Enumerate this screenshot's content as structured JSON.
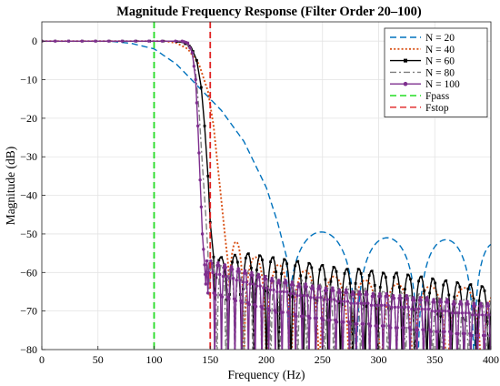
{
  "chart_data": {
    "type": "line",
    "title": "Magnitude Frequency Response (Filter Order 20–100)",
    "xlabel": "Frequency (Hz)",
    "ylabel": "Magnitude (dB)",
    "xlim": [
      0,
      400
    ],
    "ylim": [
      -80,
      5
    ],
    "xticks": [
      0,
      50,
      100,
      150,
      200,
      250,
      300,
      350,
      400
    ],
    "yticks": [
      0,
      -10,
      -20,
      -30,
      -40,
      -50,
      -60,
      -70,
      -80
    ],
    "grid": true,
    "legend_position": "top-right",
    "series": [
      {
        "name": "N = 20",
        "color": "#0072BD",
        "style": "dashed",
        "marker": "none",
        "profile": {
          "passband": [
            [
              0,
              0
            ],
            [
              60,
              0
            ],
            [
              80,
              -0.6
            ],
            [
              100,
              -2
            ],
            [
              120,
              -6
            ],
            [
              140,
              -12
            ],
            [
              160,
              -18
            ],
            [
              180,
              -26
            ],
            [
              200,
              -38
            ],
            [
              210,
              -47
            ],
            [
              218,
              -56
            ]
          ],
          "lobes": [
            [
              218,
              280,
              -49.5
            ],
            [
              280,
              335,
              -51
            ],
            [
              335,
              385,
              -51.5
            ],
            [
              385,
              420,
              -52.5
            ]
          ]
        }
      },
      {
        "name": "N = 40",
        "color": "#D95319",
        "style": "dotted",
        "marker": "none",
        "profile": {
          "passband": [
            [
              0,
              0
            ],
            [
              110,
              0
            ],
            [
              120,
              -0.5
            ],
            [
              130,
              -2
            ],
            [
              140,
              -6
            ],
            [
              148,
              -13
            ],
            [
              153,
              -22
            ],
            [
              158,
              -36
            ],
            [
              163,
              -50
            ],
            [
              166,
              -58
            ]
          ],
          "lobes": [
            [
              166,
              180,
              -52
            ],
            [
              180,
              200,
              -56
            ],
            [
              200,
              222,
              -58
            ],
            [
              222,
              247,
              -59.5
            ],
            [
              247,
              274,
              -61
            ],
            [
              274,
              302,
              -62
            ],
            [
              302,
              331,
              -63
            ],
            [
              331,
              361,
              -63.5
            ],
            [
              361,
              392,
              -64
            ],
            [
              392,
              420,
              -64.5
            ]
          ]
        }
      },
      {
        "name": "N = 60",
        "color": "#000000",
        "style": "solid",
        "marker": "square",
        "profile": {
          "passband": [
            [
              0,
              0
            ],
            [
              118,
              0
            ],
            [
              126,
              -0.4
            ],
            [
              133,
              -1.5
            ],
            [
              138,
              -5
            ],
            [
              142,
              -12
            ],
            [
              145,
              -22
            ],
            [
              148,
              -35
            ],
            [
              150,
              -47
            ],
            [
              153,
              -56
            ]
          ],
          "lobes": [
            [
              153,
              166,
              -56
            ],
            [
              166,
              178,
              -55.5
            ],
            [
              178,
              189,
              -55
            ],
            [
              189,
              200,
              -55.5
            ],
            [
              200,
              211,
              -56
            ],
            [
              211,
              222,
              -56.5
            ],
            [
              222,
              233,
              -57
            ],
            [
              233,
              244,
              -57.5
            ],
            [
              244,
              255,
              -58
            ],
            [
              255,
              266,
              -58.5
            ],
            [
              266,
              277,
              -59
            ],
            [
              277,
              288,
              -59
            ],
            [
              288,
              299,
              -59.5
            ],
            [
              299,
              310,
              -60
            ],
            [
              310,
              321,
              -60
            ],
            [
              321,
              332,
              -60.5
            ],
            [
              332,
              343,
              -61
            ],
            [
              343,
              354,
              -61.5
            ],
            [
              354,
              365,
              -62
            ],
            [
              365,
              376,
              -62.5
            ],
            [
              376,
              387,
              -63
            ],
            [
              387,
              398,
              -63.5
            ],
            [
              398,
              409,
              -64
            ]
          ]
        }
      },
      {
        "name": "N = 80",
        "color": "#7F7F7F",
        "style": "dashdot",
        "marker": "none",
        "profile": {
          "passband": [
            [
              0,
              0
            ],
            [
              122,
              0
            ],
            [
              128,
              -0.5
            ],
            [
              133,
              -2
            ],
            [
              137,
              -8
            ],
            [
              140,
              -18
            ],
            [
              143,
              -32
            ],
            [
              146,
              -45
            ],
            [
              148,
              -55
            ]
          ],
          "lobes": [
            [
              148,
              156,
              -57.5
            ],
            [
              156,
              164,
              -58
            ],
            [
              164,
              172,
              -58.5
            ],
            [
              172,
              180,
              -59
            ],
            [
              180,
              188,
              -59.5
            ],
            [
              188,
              196,
              -60
            ],
            [
              196,
              204,
              -60.5
            ],
            [
              204,
              212,
              -61
            ],
            [
              212,
              220,
              -61.5
            ],
            [
              220,
              228,
              -62
            ],
            [
              228,
              236,
              -62
            ],
            [
              236,
              244,
              -62.5
            ],
            [
              244,
              252,
              -63
            ],
            [
              252,
              260,
              -63
            ],
            [
              260,
              268,
              -63.5
            ],
            [
              268,
              276,
              -63.5
            ],
            [
              276,
              284,
              -64
            ],
            [
              284,
              292,
              -64
            ],
            [
              292,
              300,
              -64.5
            ],
            [
              300,
              308,
              -64.5
            ],
            [
              308,
              316,
              -65
            ],
            [
              316,
              324,
              -65
            ],
            [
              324,
              332,
              -65.5
            ],
            [
              332,
              340,
              -65.5
            ],
            [
              340,
              348,
              -66
            ],
            [
              348,
              356,
              -66
            ],
            [
              356,
              364,
              -66.5
            ],
            [
              364,
              372,
              -66.5
            ],
            [
              372,
              380,
              -67
            ],
            [
              380,
              388,
              -67
            ],
            [
              388,
              396,
              -67.5
            ],
            [
              396,
              404,
              -67.5
            ]
          ]
        }
      },
      {
        "name": "N = 100",
        "color": "#7E2F8E",
        "style": "solid",
        "marker": "circle",
        "profile": {
          "passband": [
            [
              0,
              0
            ],
            [
              125,
              0
            ],
            [
              130,
              -0.5
            ],
            [
              134,
              -3
            ],
            [
              137,
              -10
            ],
            [
              139,
              -22
            ],
            [
              141,
              -36
            ],
            [
              143,
              -50
            ],
            [
              145,
              -58
            ],
            [
              146,
              -63
            ],
            [
              147,
              -57
            ]
          ],
          "lobes": [
            [
              147,
              154,
              -57
            ],
            [
              154,
              160,
              -57.5
            ],
            [
              160,
              166,
              -58
            ],
            [
              166,
              172,
              -58.5
            ],
            [
              172,
              178,
              -59
            ],
            [
              178,
              184,
              -59.5
            ],
            [
              184,
              190,
              -60
            ],
            [
              190,
              196,
              -60.5
            ],
            [
              196,
              202,
              -61
            ],
            [
              202,
              208,
              -61.5
            ],
            [
              208,
              214,
              -62
            ],
            [
              214,
              220,
              -62
            ],
            [
              220,
              226,
              -62.5
            ],
            [
              226,
              232,
              -63
            ],
            [
              232,
              238,
              -63
            ],
            [
              238,
              244,
              -63.5
            ],
            [
              244,
              250,
              -63.5
            ],
            [
              250,
              256,
              -64
            ],
            [
              256,
              262,
              -64
            ],
            [
              262,
              268,
              -64.5
            ],
            [
              268,
              274,
              -64.5
            ],
            [
              274,
              280,
              -65
            ],
            [
              280,
              286,
              -65
            ],
            [
              286,
              292,
              -65
            ],
            [
              292,
              298,
              -65.5
            ],
            [
              298,
              304,
              -65.5
            ],
            [
              304,
              310,
              -65.5
            ],
            [
              310,
              316,
              -66
            ],
            [
              316,
              322,
              -66
            ],
            [
              322,
              328,
              -66
            ],
            [
              328,
              334,
              -66.5
            ],
            [
              334,
              340,
              -66.5
            ],
            [
              340,
              346,
              -66.5
            ],
            [
              346,
              352,
              -67
            ],
            [
              352,
              358,
              -67
            ],
            [
              358,
              364,
              -67
            ],
            [
              364,
              370,
              -67.5
            ],
            [
              370,
              376,
              -67.5
            ],
            [
              376,
              382,
              -67.5
            ],
            [
              382,
              388,
              -68
            ],
            [
              388,
              394,
              -68
            ],
            [
              394,
              400,
              -68
            ],
            [
              400,
              406,
              -68
            ]
          ]
        }
      },
      {
        "name": "Fpass",
        "color": "#22DD22",
        "style": "dashed",
        "marker": "none",
        "vertical_x": 100
      },
      {
        "name": "Fstop",
        "color": "#E02020",
        "style": "dashed",
        "marker": "none",
        "vertical_x": 150
      }
    ]
  }
}
